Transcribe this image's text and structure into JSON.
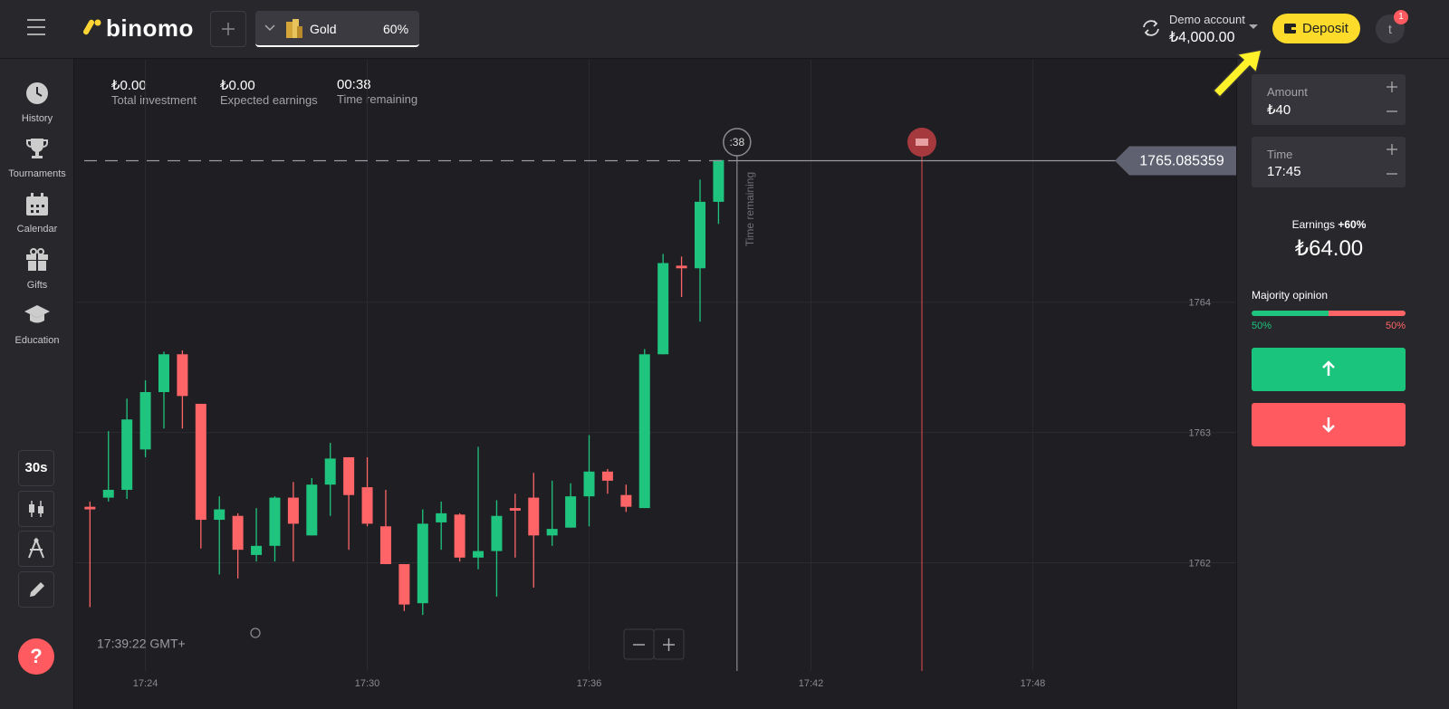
{
  "header": {
    "logo": "binomo",
    "asset": "Gold",
    "payout": "60%",
    "account_type": "Demo account",
    "balance": "₺4,000.00",
    "deposit": "Deposit",
    "avatar": "t",
    "notifications": "1"
  },
  "sidebar": {
    "items": [
      "History",
      "Tournaments",
      "Calendar",
      "Gifts",
      "Education"
    ],
    "timeframe": "30s",
    "help": "?"
  },
  "stats": [
    {
      "value": "₺0.00",
      "label": "Total investment"
    },
    {
      "value": "₺0.00",
      "label": "Expected earnings"
    },
    {
      "value": "00:38",
      "label": "Time remaining"
    }
  ],
  "chart_data": {
    "type": "candlestick",
    "x": [
      1042.5,
      1043,
      1043.5,
      1044,
      1044.5,
      1045,
      1045.5,
      1046,
      1046.5,
      1047,
      1047.5,
      1048,
      1048.5,
      1049,
      1049.5,
      1050,
      1050.5,
      1051,
      1051.5,
      1052,
      1052.5,
      1053,
      1053.5,
      1054,
      1054.5,
      1055,
      1055.5,
      1056,
      1056.5,
      1057,
      1057.5,
      1058,
      1058.5,
      1059,
      1059.5
    ],
    "open": [
      1762.43,
      1762.5,
      1762.56,
      1762.87,
      1763.31,
      1763.6,
      1763.22,
      1762.33,
      1762.36,
      1762.06,
      1762.13,
      1762.5,
      1762.21,
      1762.6,
      1762.81,
      1762.58,
      1762.28,
      1761.99,
      1761.69,
      1762.31,
      1762.37,
      1762.04,
      1762.09,
      1762.42,
      1762.5,
      1762.21,
      1762.27,
      1762.51,
      1762.7,
      1762.52,
      1762.42,
      1763.6,
      1764.28,
      1764.26,
      1764.77
    ],
    "high": [
      1762.47,
      1763.01,
      1763.26,
      1763.4,
      1763.62,
      1763.63,
      1763.22,
      1762.51,
      1762.38,
      1762.42,
      1762.51,
      1762.62,
      1762.65,
      1762.92,
      1762.81,
      1762.81,
      1762.56,
      1761.99,
      1762.41,
      1762.47,
      1762.38,
      1762.89,
      1762.48,
      1762.53,
      1762.69,
      1762.63,
      1762.61,
      1762.98,
      1762.72,
      1762.6,
      1763.64,
      1764.37,
      1764.35,
      1764.94,
      1765.09
    ],
    "low": [
      1761.66,
      1762.47,
      1762.49,
      1762.81,
      1763.03,
      1763.03,
      1762.11,
      1761.91,
      1761.88,
      1762.01,
      1762.01,
      1762.01,
      1762.21,
      1762.36,
      1762.1,
      1762.28,
      1761.99,
      1761.63,
      1761.6,
      1762.1,
      1762.01,
      1761.95,
      1761.74,
      1762.04,
      1761.81,
      1762.13,
      1762.27,
      1762.28,
      1762.53,
      1762.39,
      1762.42,
      1763.6,
      1764.04,
      1763.85,
      1764.6
    ],
    "close": [
      1762.41,
      1762.56,
      1763.1,
      1763.31,
      1763.6,
      1763.28,
      1762.33,
      1762.41,
      1762.1,
      1762.13,
      1762.5,
      1762.3,
      1762.6,
      1762.8,
      1762.52,
      1762.3,
      1761.99,
      1761.68,
      1762.3,
      1762.38,
      1762.04,
      1762.09,
      1762.36,
      1762.4,
      1762.21,
      1762.26,
      1762.51,
      1762.7,
      1762.63,
      1762.43,
      1763.6,
      1764.3,
      1764.26,
      1764.77,
      1765.09
    ],
    "up_color": "#1fc47e",
    "down_color": "#ff6467",
    "xlim": [
      1042.1,
      1073.5
    ],
    "xticks": [
      {
        "value": 1044,
        "label": "17:24"
      },
      {
        "value": 1050,
        "label": "17:30"
      },
      {
        "value": 1056,
        "label": "17:36"
      },
      {
        "value": 1062,
        "label": "17:42"
      },
      {
        "value": 1068,
        "label": "17:48"
      }
    ],
    "ylim": [
      1761.17,
      1765.86
    ],
    "yticks": [
      1762,
      1763,
      1764
    ],
    "grid": true,
    "current_price": 1765.085359,
    "now_line": 1060,
    "expiry_line": 1065,
    "timer": ":38",
    "timer_caption": "Time remaining",
    "clock": "17:39:22 GMT+"
  },
  "trade_panel": {
    "amount_label": "Amount",
    "amount": "₺40",
    "time_label": "Time",
    "time": "17:45",
    "earnings_label": "Earnings",
    "earnings_rate": "+60%",
    "earnings": "₺64.00",
    "majority_label": "Majority opinion",
    "majority_up": "50%",
    "majority_down": "50%"
  }
}
